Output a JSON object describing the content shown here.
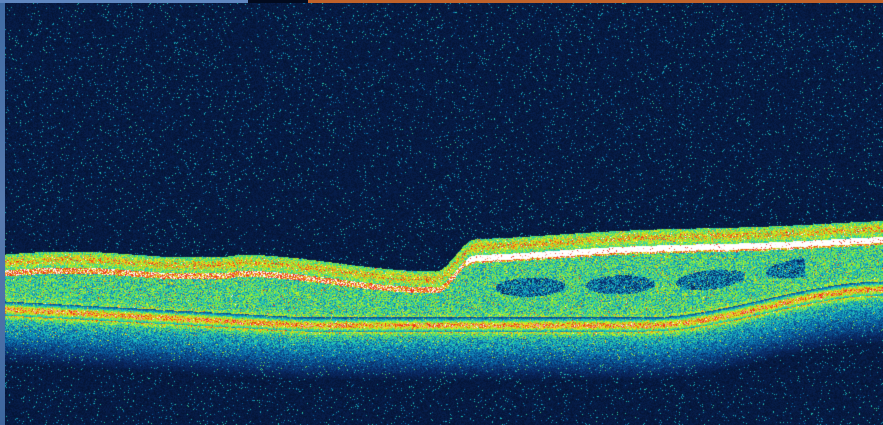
{
  "image": {
    "subject": "oct-retinal-cross-section",
    "colormap": [
      "#020a1e",
      "#0a2a66",
      "#0b6fb0",
      "#1fc9c0",
      "#7be83a",
      "#e8f020",
      "#f08a18",
      "#e81e10",
      "#ffffff"
    ],
    "frame_colors": {
      "left_strip": "#4a72aa",
      "top_left_strip": "#5f86c0",
      "top_right_strip": "#c0622a"
    }
  }
}
